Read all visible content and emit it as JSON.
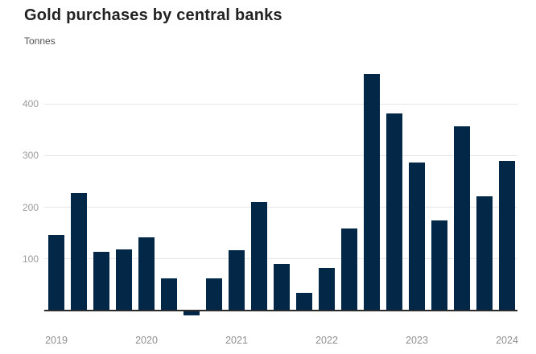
{
  "header": {
    "title": "Gold purchases by central banks",
    "subtitle": "Tonnes"
  },
  "chart_data": {
    "type": "bar",
    "title": "Gold purchases by central banks",
    "ylabel": "Tonnes",
    "xlabel": "",
    "categories": [
      "2019 Q1",
      "2019 Q2",
      "2019 Q3",
      "2019 Q4",
      "2020 Q1",
      "2020 Q2",
      "2020 Q3",
      "2020 Q4",
      "2021 Q1",
      "2021 Q2",
      "2021 Q3",
      "2021 Q4",
      "2022 Q1",
      "2022 Q2",
      "2022 Q3",
      "2022 Q4",
      "2023 Q1",
      "2023 Q2",
      "2023 Q3",
      "2023 Q4",
      "2024 Q1"
    ],
    "values": [
      146,
      227,
      113,
      118,
      142,
      63,
      -10,
      62,
      116,
      210,
      91,
      35,
      82,
      158,
      458,
      382,
      287,
      175,
      357,
      221,
      290
    ],
    "yticks": [
      100,
      200,
      300,
      400
    ],
    "year_labels": [
      "2019",
      "2020",
      "2021",
      "2022",
      "2023",
      "2024"
    ],
    "ylim": [
      -25,
      480
    ],
    "grid": true,
    "legend": false,
    "bar_color": "#032747",
    "gridline_color": "#e6e6e6",
    "axis_color": "#2b2b2b",
    "tick_label_color": "#9a9a9a"
  }
}
